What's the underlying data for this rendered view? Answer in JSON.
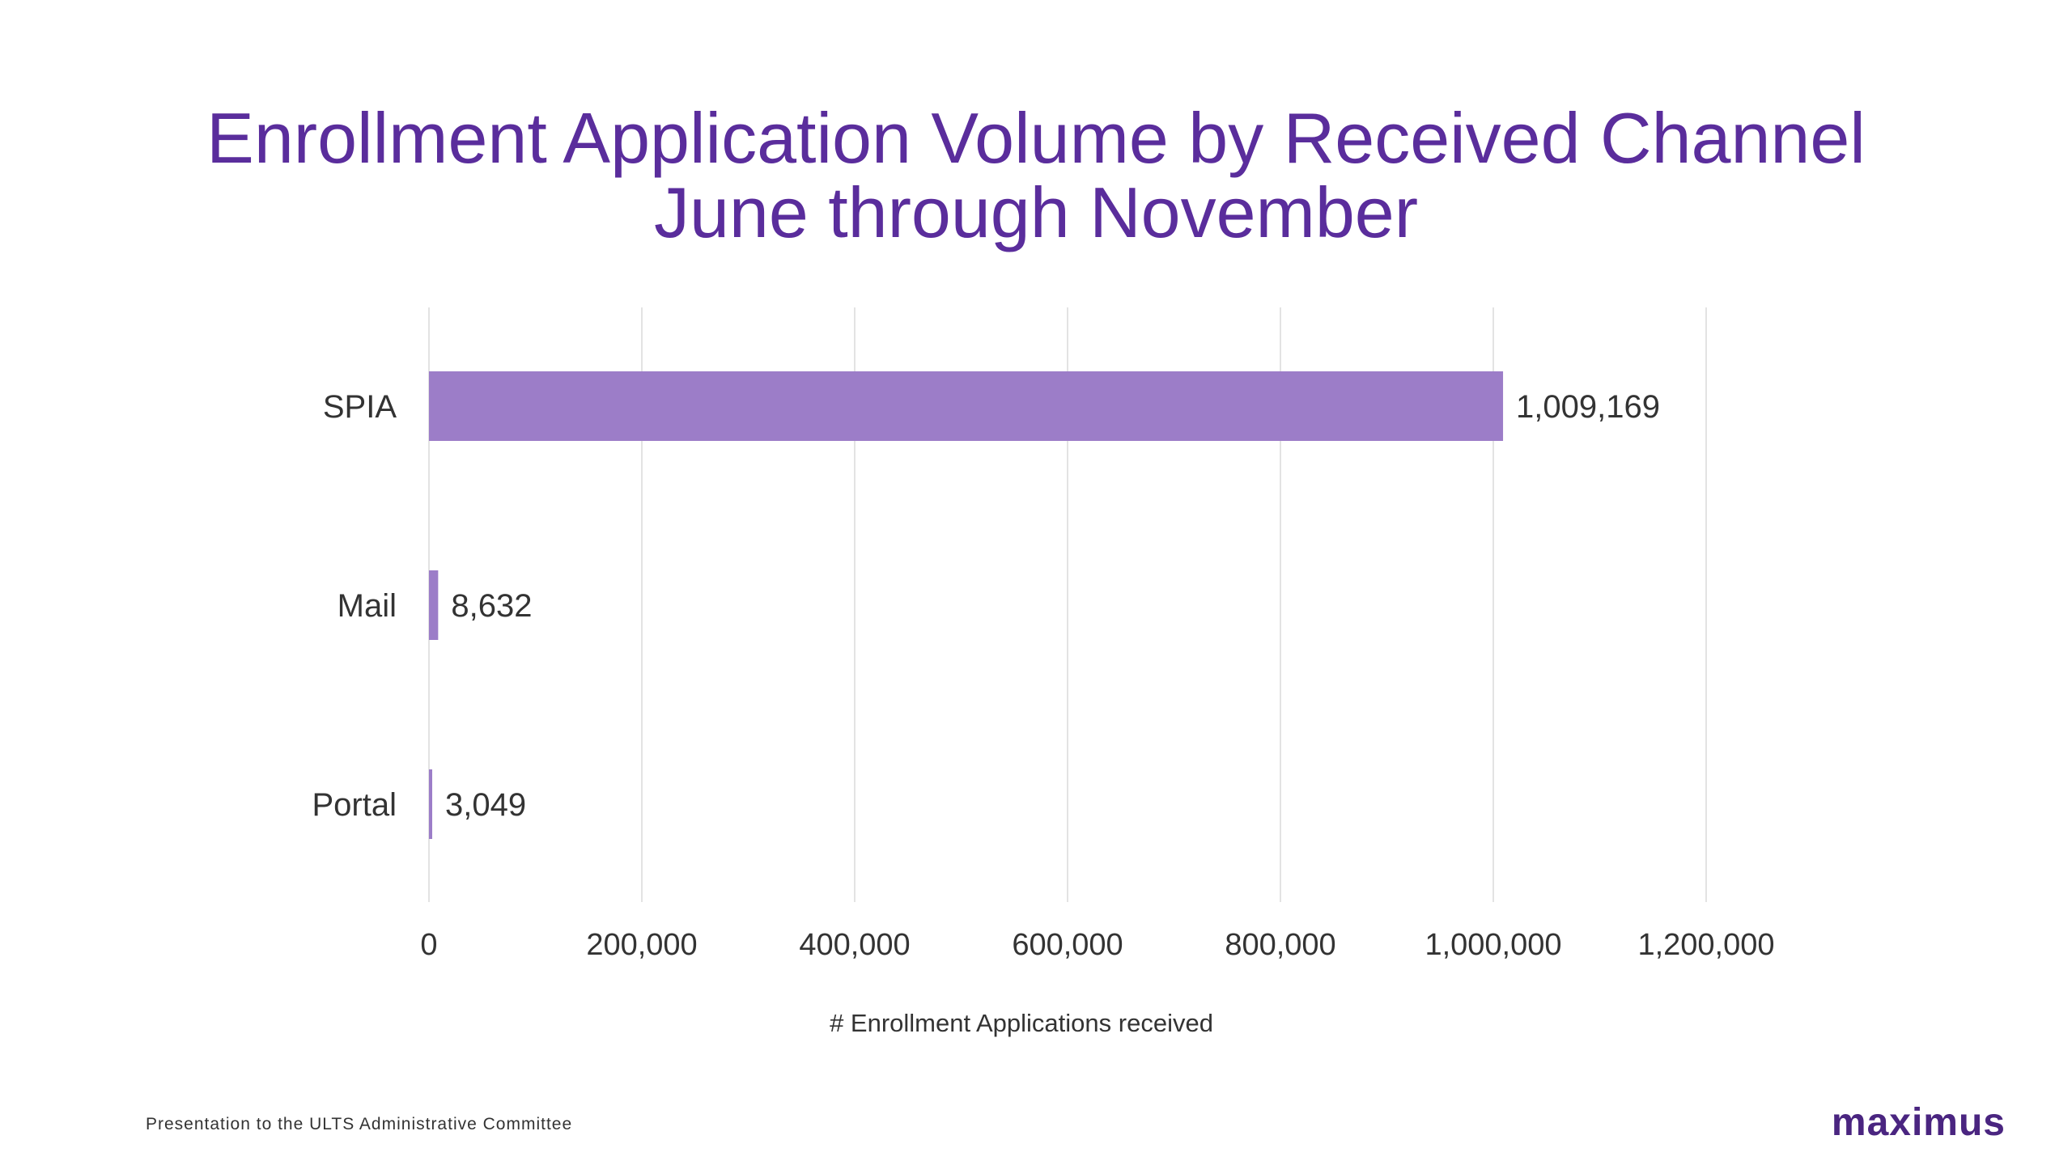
{
  "footer": {
    "note": "Presentation to the ULTS Administrative Committee",
    "logo": "maximus"
  },
  "colors": {
    "title": "#5a2d9c",
    "bar": "#9c7dc8",
    "grid": "#e3e3e3",
    "logo": "#4a2580"
  },
  "chart_data": {
    "type": "bar",
    "orientation": "horizontal",
    "title": "Enrollment Application Volume by Received Channel",
    "subtitle": "June through November",
    "categories": [
      "SPIA",
      "Mail",
      "Portal"
    ],
    "values": [
      1009169,
      8632,
      3049
    ],
    "value_labels": [
      "1,009,169",
      "8,632",
      "3,049"
    ],
    "xlabel": "# Enrollment Applications received",
    "xlim": [
      0,
      1200000
    ],
    "xticks": [
      0,
      200000,
      400000,
      600000,
      800000,
      1000000,
      1200000
    ],
    "xtick_labels": [
      "0",
      "200,000",
      "400,000",
      "600,000",
      "800,000",
      "1,000,000",
      "1,200,000"
    ],
    "grid": true,
    "legend": "none"
  }
}
